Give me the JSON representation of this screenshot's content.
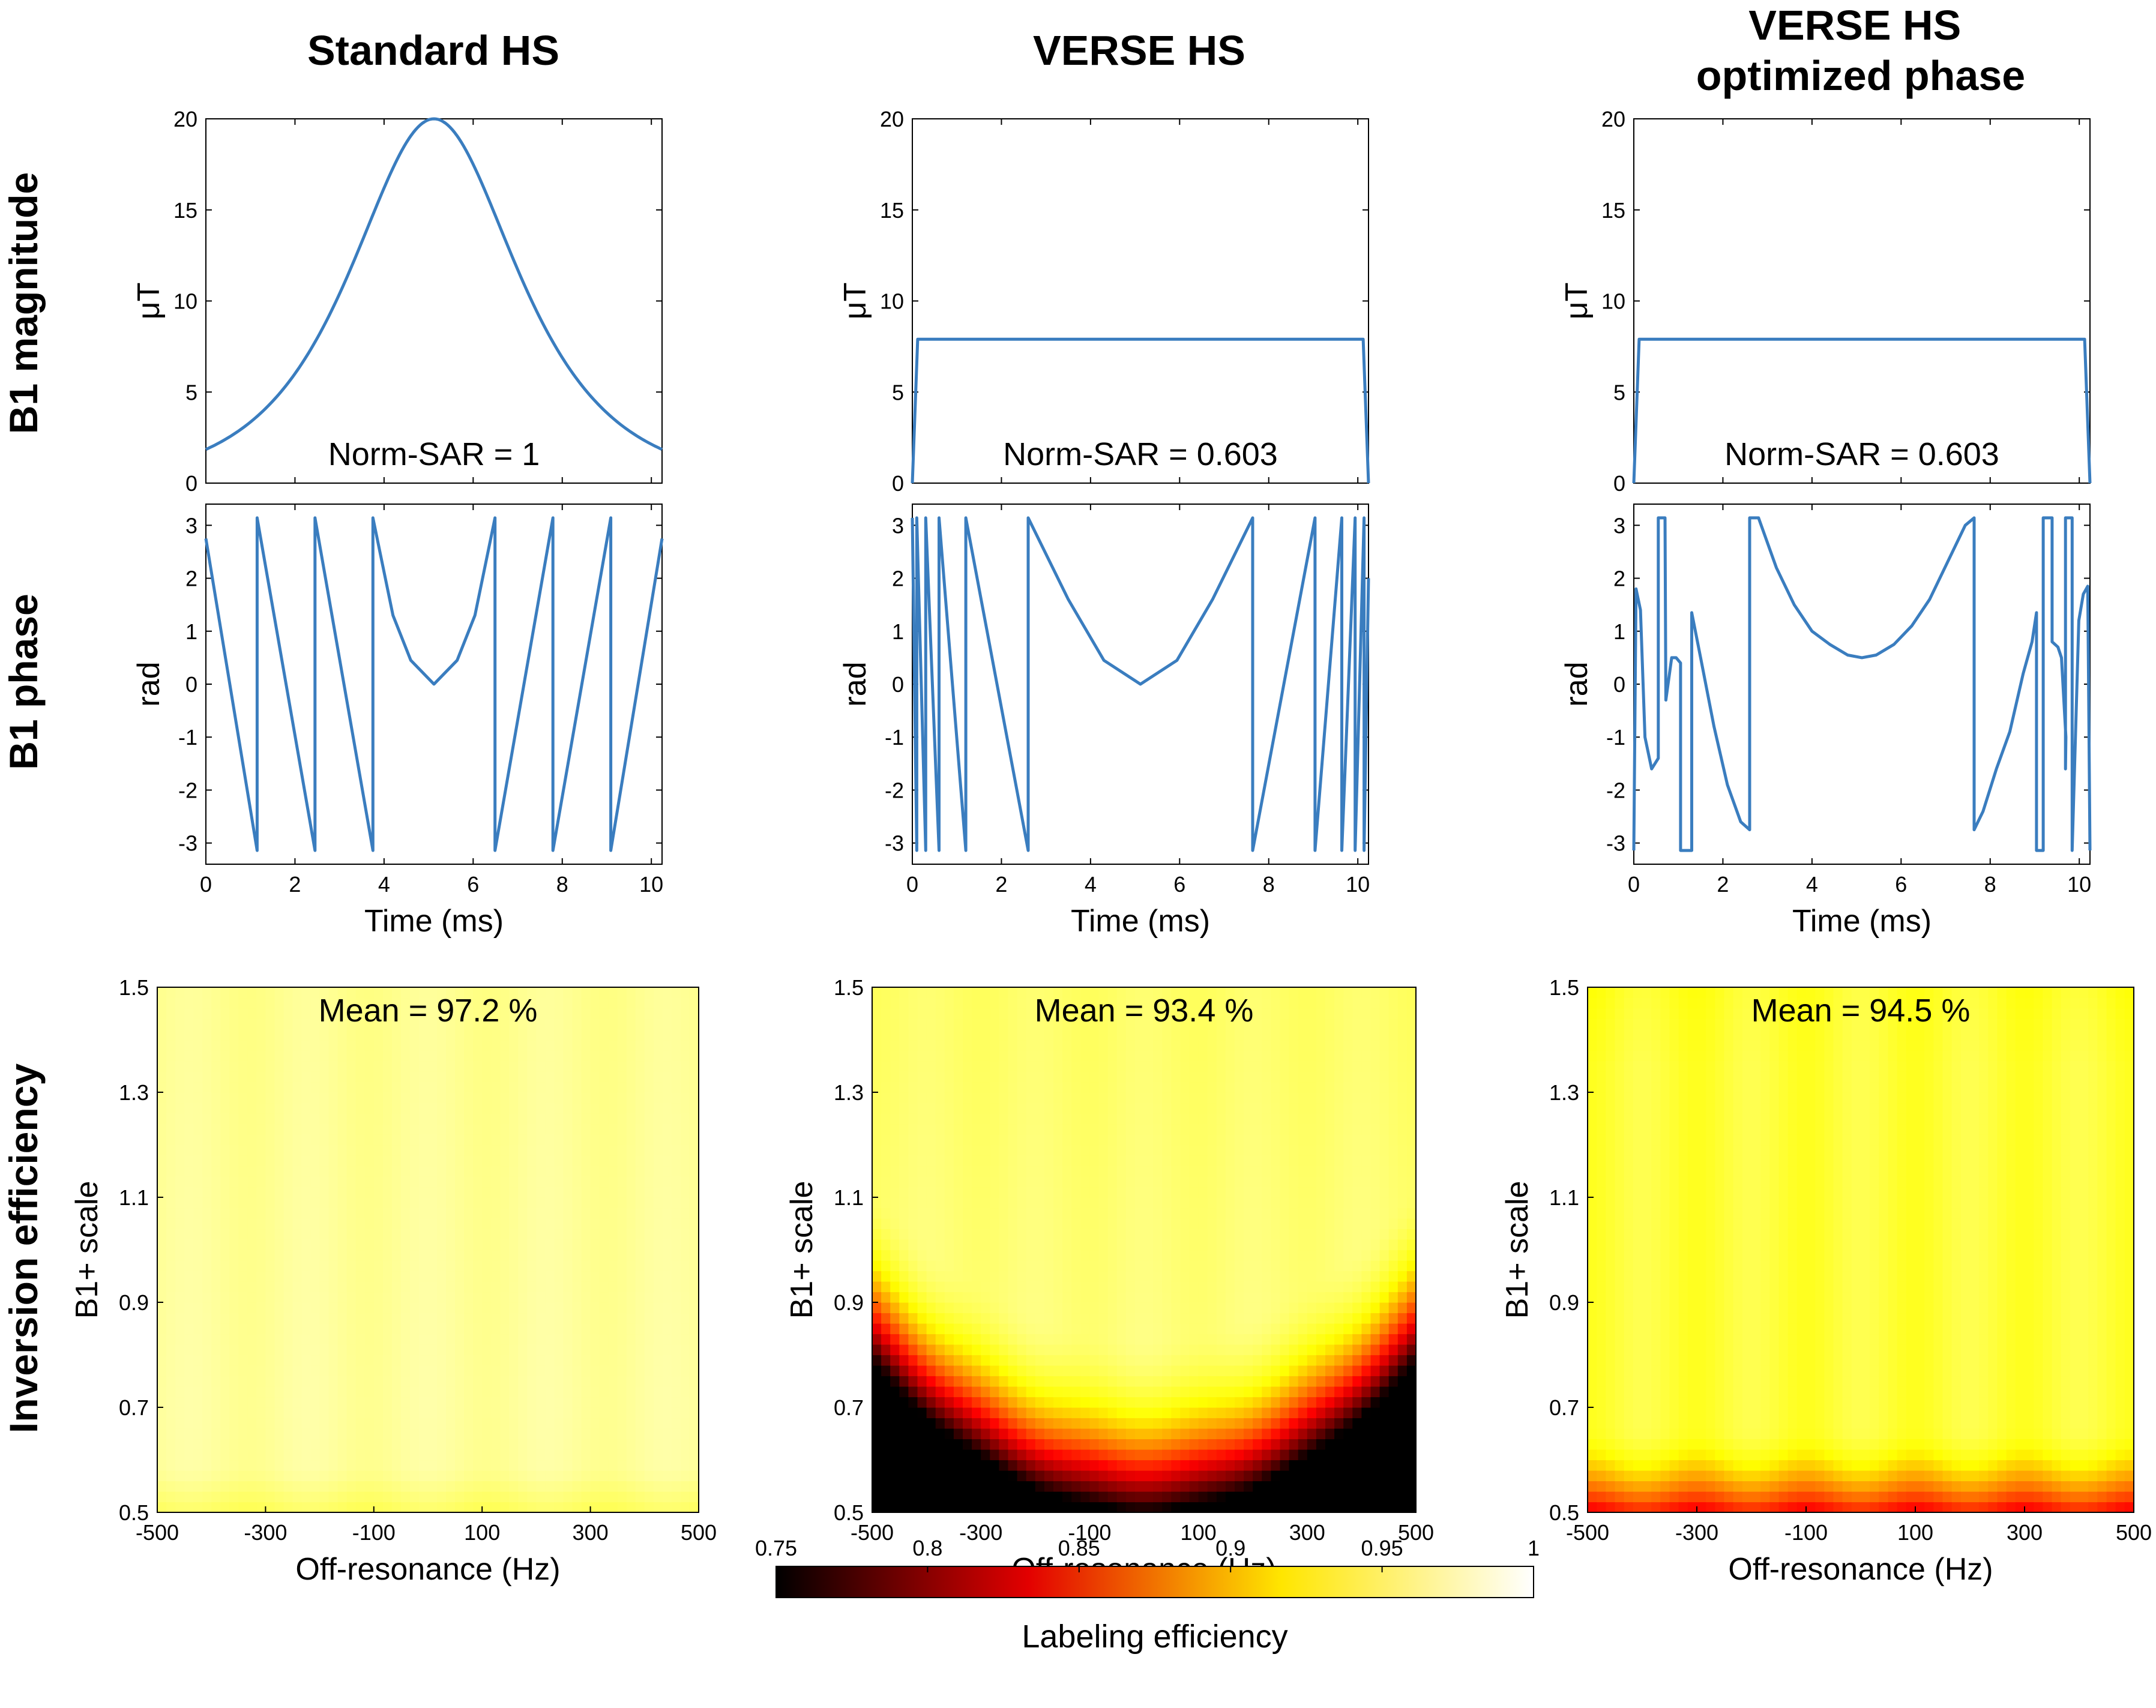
{
  "columns": [
    "Standard HS",
    "VERSE HS",
    "VERSE HS\noptimized phase"
  ],
  "row_labels": [
    "B1 magnitude",
    "B1 phase",
    "Inversion efficiency"
  ],
  "chart_data": [
    {
      "type": "line",
      "panel": "magnitude",
      "column": "Standard HS",
      "ylabel": "μT",
      "xlim": [
        0,
        10.24
      ],
      "ylim": [
        0,
        20
      ],
      "yticks": [
        0,
        5,
        10,
        15,
        20
      ],
      "annotation": "Norm-SAR = 1",
      "series": [
        {
          "name": "B1 magnitude",
          "color": "#3a7dbf",
          "x": [
            0,
            0.5,
            1.0,
            1.5,
            2.0,
            2.5,
            3.0,
            3.5,
            4.0,
            4.5,
            5.12,
            5.74,
            6.24,
            6.74,
            7.24,
            7.74,
            8.24,
            8.74,
            9.24,
            9.74,
            10.24
          ],
          "y": [
            0.8,
            1.2,
            1.8,
            2.7,
            4.0,
            5.8,
            8.4,
            11.7,
            15.4,
            18.6,
            20,
            18.6,
            15.4,
            11.7,
            8.4,
            5.8,
            4.0,
            2.7,
            1.8,
            1.2,
            0.8
          ]
        }
      ]
    },
    {
      "type": "line",
      "panel": "magnitude",
      "column": "VERSE HS",
      "ylabel": "μT",
      "xlim": [
        0,
        10.24
      ],
      "ylim": [
        0,
        20
      ],
      "yticks": [
        0,
        5,
        10,
        15,
        20
      ],
      "annotation": "Norm-SAR = 0.603",
      "series": [
        {
          "name": "B1 magnitude",
          "color": "#3a7dbf",
          "x": [
            0,
            0.12,
            10.12,
            10.24
          ],
          "y": [
            0,
            7.9,
            7.9,
            0
          ]
        }
      ]
    },
    {
      "type": "line",
      "panel": "magnitude",
      "column": "VERSE HS optimized phase",
      "ylabel": "μT",
      "xlim": [
        0,
        10.24
      ],
      "ylim": [
        0,
        20
      ],
      "yticks": [
        0,
        5,
        10,
        15,
        20
      ],
      "annotation": "Norm-SAR = 0.603",
      "series": [
        {
          "name": "B1 magnitude",
          "color": "#3a7dbf",
          "x": [
            0,
            0.12,
            10.12,
            10.24
          ],
          "y": [
            0,
            7.9,
            7.9,
            0
          ]
        }
      ]
    },
    {
      "type": "line",
      "panel": "phase",
      "column": "Standard HS",
      "ylabel": "rad",
      "xlabel": "Time (ms)",
      "xlim": [
        0,
        10.24
      ],
      "ylim": [
        -3.4,
        3.4
      ],
      "xticks": [
        0,
        2,
        4,
        6,
        8,
        10
      ],
      "yticks": [
        -3,
        -2,
        -1,
        0,
        1,
        2,
        3
      ],
      "series": [
        {
          "name": "B1 phase",
          "color": "#3a7dbf",
          "x": [
            0,
            1.15,
            1.15,
            2.45,
            2.45,
            3.75,
            3.75,
            4.2,
            4.6,
            5.12,
            5.64,
            6.04,
            6.49,
            6.49,
            7.79,
            7.79,
            9.09,
            9.09,
            10.24
          ],
          "y": [
            2.75,
            -3.14,
            3.14,
            -3.14,
            3.14,
            -3.14,
            3.14,
            1.3,
            0.45,
            0.0,
            0.45,
            1.3,
            3.14,
            -3.14,
            3.14,
            -3.14,
            3.14,
            -3.14,
            2.75
          ]
        }
      ]
    },
    {
      "type": "line",
      "panel": "phase",
      "column": "VERSE HS",
      "ylabel": "rad",
      "xlabel": "Time (ms)",
      "xlim": [
        0,
        10.24
      ],
      "ylim": [
        -3.4,
        3.4
      ],
      "xticks": [
        0,
        2,
        4,
        6,
        8,
        10
      ],
      "yticks": [
        -3,
        -2,
        -1,
        0,
        1,
        2,
        3
      ],
      "series": [
        {
          "name": "B1 phase",
          "color": "#3a7dbf",
          "x": [
            0,
            0.1,
            0.1,
            0.3,
            0.3,
            0.6,
            0.6,
            1.2,
            1.2,
            2.6,
            2.6,
            3.5,
            4.3,
            5.12,
            5.94,
            6.74,
            7.64,
            7.64,
            9.04,
            9.04,
            9.64,
            9.64,
            9.94,
            9.94,
            10.14,
            10.14,
            10.24
          ],
          "y": [
            3.14,
            -3.14,
            3.14,
            -3.14,
            3.14,
            -3.14,
            3.14,
            -3.14,
            3.14,
            -3.14,
            3.14,
            1.6,
            0.45,
            0.0,
            0.45,
            1.6,
            3.14,
            -3.14,
            3.14,
            -3.14,
            3.14,
            -3.14,
            3.14,
            -3.14,
            3.14,
            -3.14,
            2.0
          ]
        }
      ]
    },
    {
      "type": "line",
      "panel": "phase",
      "column": "VERSE HS optimized phase",
      "ylabel": "rad",
      "xlabel": "Time (ms)",
      "xlim": [
        0,
        10.24
      ],
      "ylim": [
        -3.4,
        3.4
      ],
      "xticks": [
        0,
        2,
        4,
        6,
        8,
        10
      ],
      "yticks": [
        -3,
        -2,
        -1,
        0,
        1,
        2,
        3
      ],
      "series": [
        {
          "name": "B1 phase",
          "color": "#3a7dbf",
          "x": [
            0,
            0.05,
            0.15,
            0.25,
            0.4,
            0.55,
            0.55,
            0.7,
            0.7,
            0.72,
            0.85,
            0.95,
            1.05,
            1.05,
            1.3,
            1.3,
            1.5,
            1.8,
            2.1,
            2.4,
            2.6,
            2.6,
            2.8,
            3.2,
            3.6,
            4.0,
            4.4,
            4.8,
            5.12,
            5.44,
            5.84,
            6.24,
            6.64,
            7.04,
            7.44,
            7.64,
            7.64,
            7.84,
            8.14,
            8.44,
            8.74,
            8.94,
            9.04,
            9.04,
            9.19,
            9.19,
            9.39,
            9.39,
            9.52,
            9.6,
            9.7,
            9.69,
            9.69,
            9.84,
            9.84,
            9.99,
            10.09,
            10.19,
            10.24
          ],
          "y": [
            -3.14,
            1.8,
            1.4,
            -1.0,
            -1.6,
            -1.4,
            3.14,
            3.14,
            3.14,
            -0.3,
            0.5,
            0.5,
            0.4,
            -3.14,
            -3.14,
            1.35,
            0.5,
            -0.8,
            -1.9,
            -2.6,
            -2.75,
            3.14,
            3.14,
            2.2,
            1.5,
            1.0,
            0.75,
            0.55,
            0.5,
            0.55,
            0.75,
            1.1,
            1.6,
            2.3,
            3.0,
            3.14,
            -2.75,
            -2.4,
            -1.6,
            -0.9,
            0.2,
            0.8,
            1.35,
            -3.14,
            -3.14,
            3.14,
            3.14,
            0.8,
            0.7,
            0.5,
            -1.0,
            -1.6,
            3.14,
            3.14,
            -3.14,
            1.2,
            1.7,
            1.85,
            -3.14
          ]
        }
      ]
    },
    {
      "type": "heatmap",
      "panel": "efficiency",
      "column": "Standard HS",
      "xlabel": "Off-resonance (Hz)",
      "ylabel": "B1+ scale",
      "xlim": [
        -500,
        500
      ],
      "ylim": [
        0.5,
        1.5
      ],
      "xticks": [
        -500,
        -300,
        -100,
        100,
        300,
        500
      ],
      "yticks": [
        0.5,
        0.7,
        0.9,
        1.1,
        1.3,
        1.5
      ],
      "annotation": "Mean = 97.2 %",
      "mean_percent": 97.2
    },
    {
      "type": "heatmap",
      "panel": "efficiency",
      "column": "VERSE HS",
      "xlabel": "Off-resonance (Hz)",
      "ylabel": "B1+ scale",
      "xlim": [
        -500,
        500
      ],
      "ylim": [
        0.5,
        1.5
      ],
      "xticks": [
        -500,
        -300,
        -100,
        100,
        300,
        500
      ],
      "yticks": [
        0.5,
        0.7,
        0.9,
        1.1,
        1.3,
        1.5
      ],
      "annotation": "Mean = 93.4 %",
      "mean_percent": 93.4
    },
    {
      "type": "heatmap",
      "panel": "efficiency",
      "column": "VERSE HS optimized phase",
      "xlabel": "Off-resonance (Hz)",
      "ylabel": "B1+ scale",
      "xlim": [
        -500,
        500
      ],
      "ylim": [
        0.5,
        1.5
      ],
      "xticks": [
        -500,
        -300,
        -100,
        100,
        300,
        500
      ],
      "yticks": [
        0.5,
        0.7,
        0.9,
        1.1,
        1.3,
        1.5
      ],
      "annotation": "Mean = 94.5 %",
      "mean_percent": 94.5
    }
  ],
  "colorbar": {
    "label": "Labeling efficiency",
    "range": [
      0.75,
      1
    ],
    "ticks": [
      "0.75",
      "0.8",
      "0.85",
      "0.9",
      "0.95",
      "1"
    ],
    "colormap": "hot"
  },
  "colors": {
    "line": "#3a7dbf",
    "axis": "#000000"
  }
}
